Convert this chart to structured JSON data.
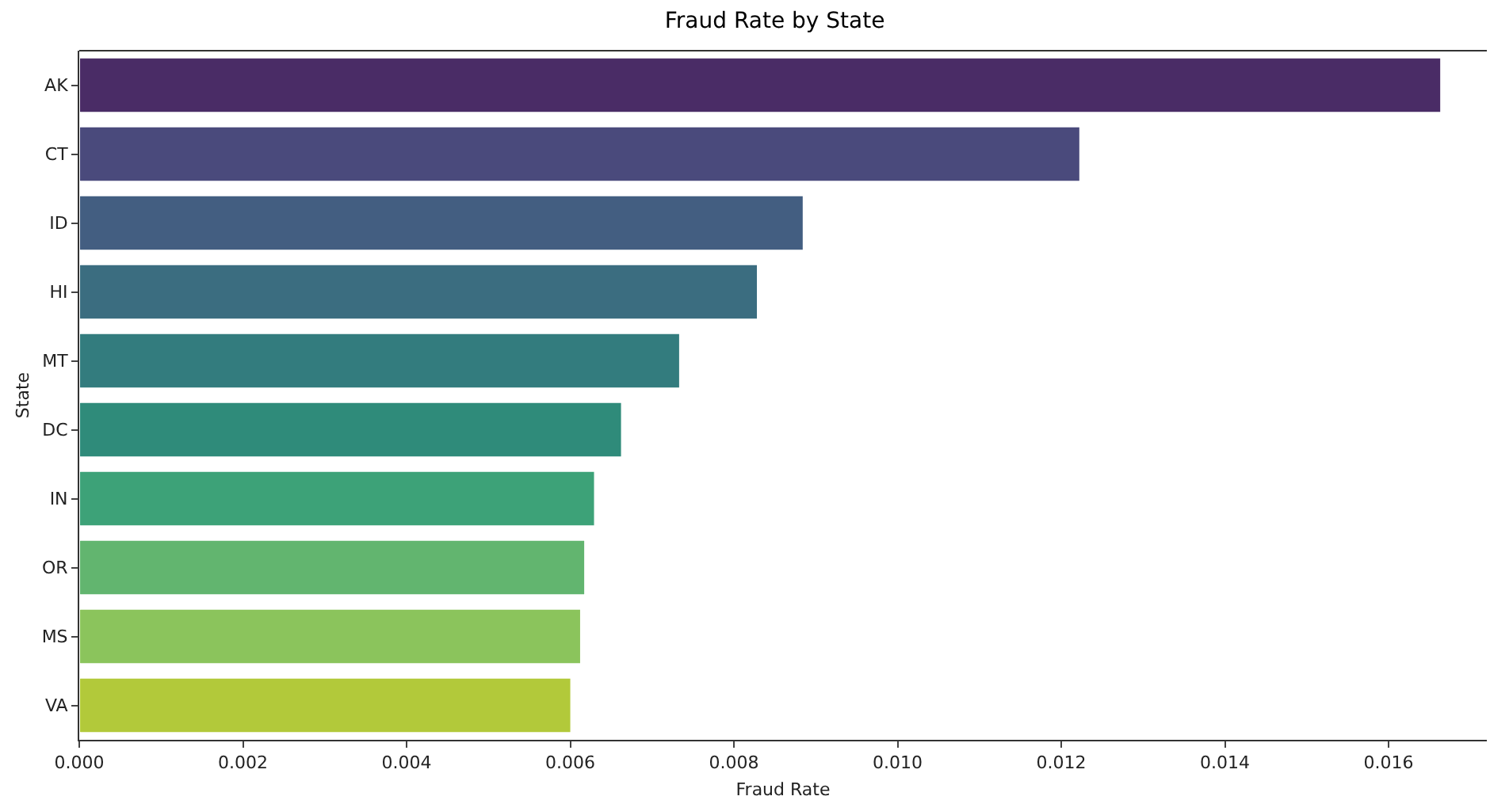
{
  "chart_data": {
    "type": "bar",
    "orientation": "horizontal",
    "title": "Fraud Rate by State",
    "xlabel": "Fraud Rate",
    "ylabel": "State",
    "categories": [
      "AK",
      "CT",
      "ID",
      "HI",
      "MT",
      "DC",
      "IN",
      "OR",
      "MS",
      "VA"
    ],
    "values": [
      0.01664,
      0.01223,
      0.00885,
      0.00829,
      0.00734,
      0.00663,
      0.0063,
      0.00618,
      0.00613,
      0.00601
    ],
    "colors": [
      "#4a2c66",
      "#4a4a7c",
      "#435e81",
      "#3b6d80",
      "#337c7e",
      "#2f8b7a",
      "#3da278",
      "#62b56f",
      "#8bc45c",
      "#b2c93a"
    ],
    "xlim": [
      0,
      0.0172
    ],
    "xticks": [
      {
        "value": 0,
        "label": "0.000"
      },
      0.002,
      0.004,
      0.006,
      0.008,
      {
        "value": 0.01,
        "label": "0.010"
      },
      0.012,
      0.014,
      0.016
    ],
    "grid": false
  }
}
